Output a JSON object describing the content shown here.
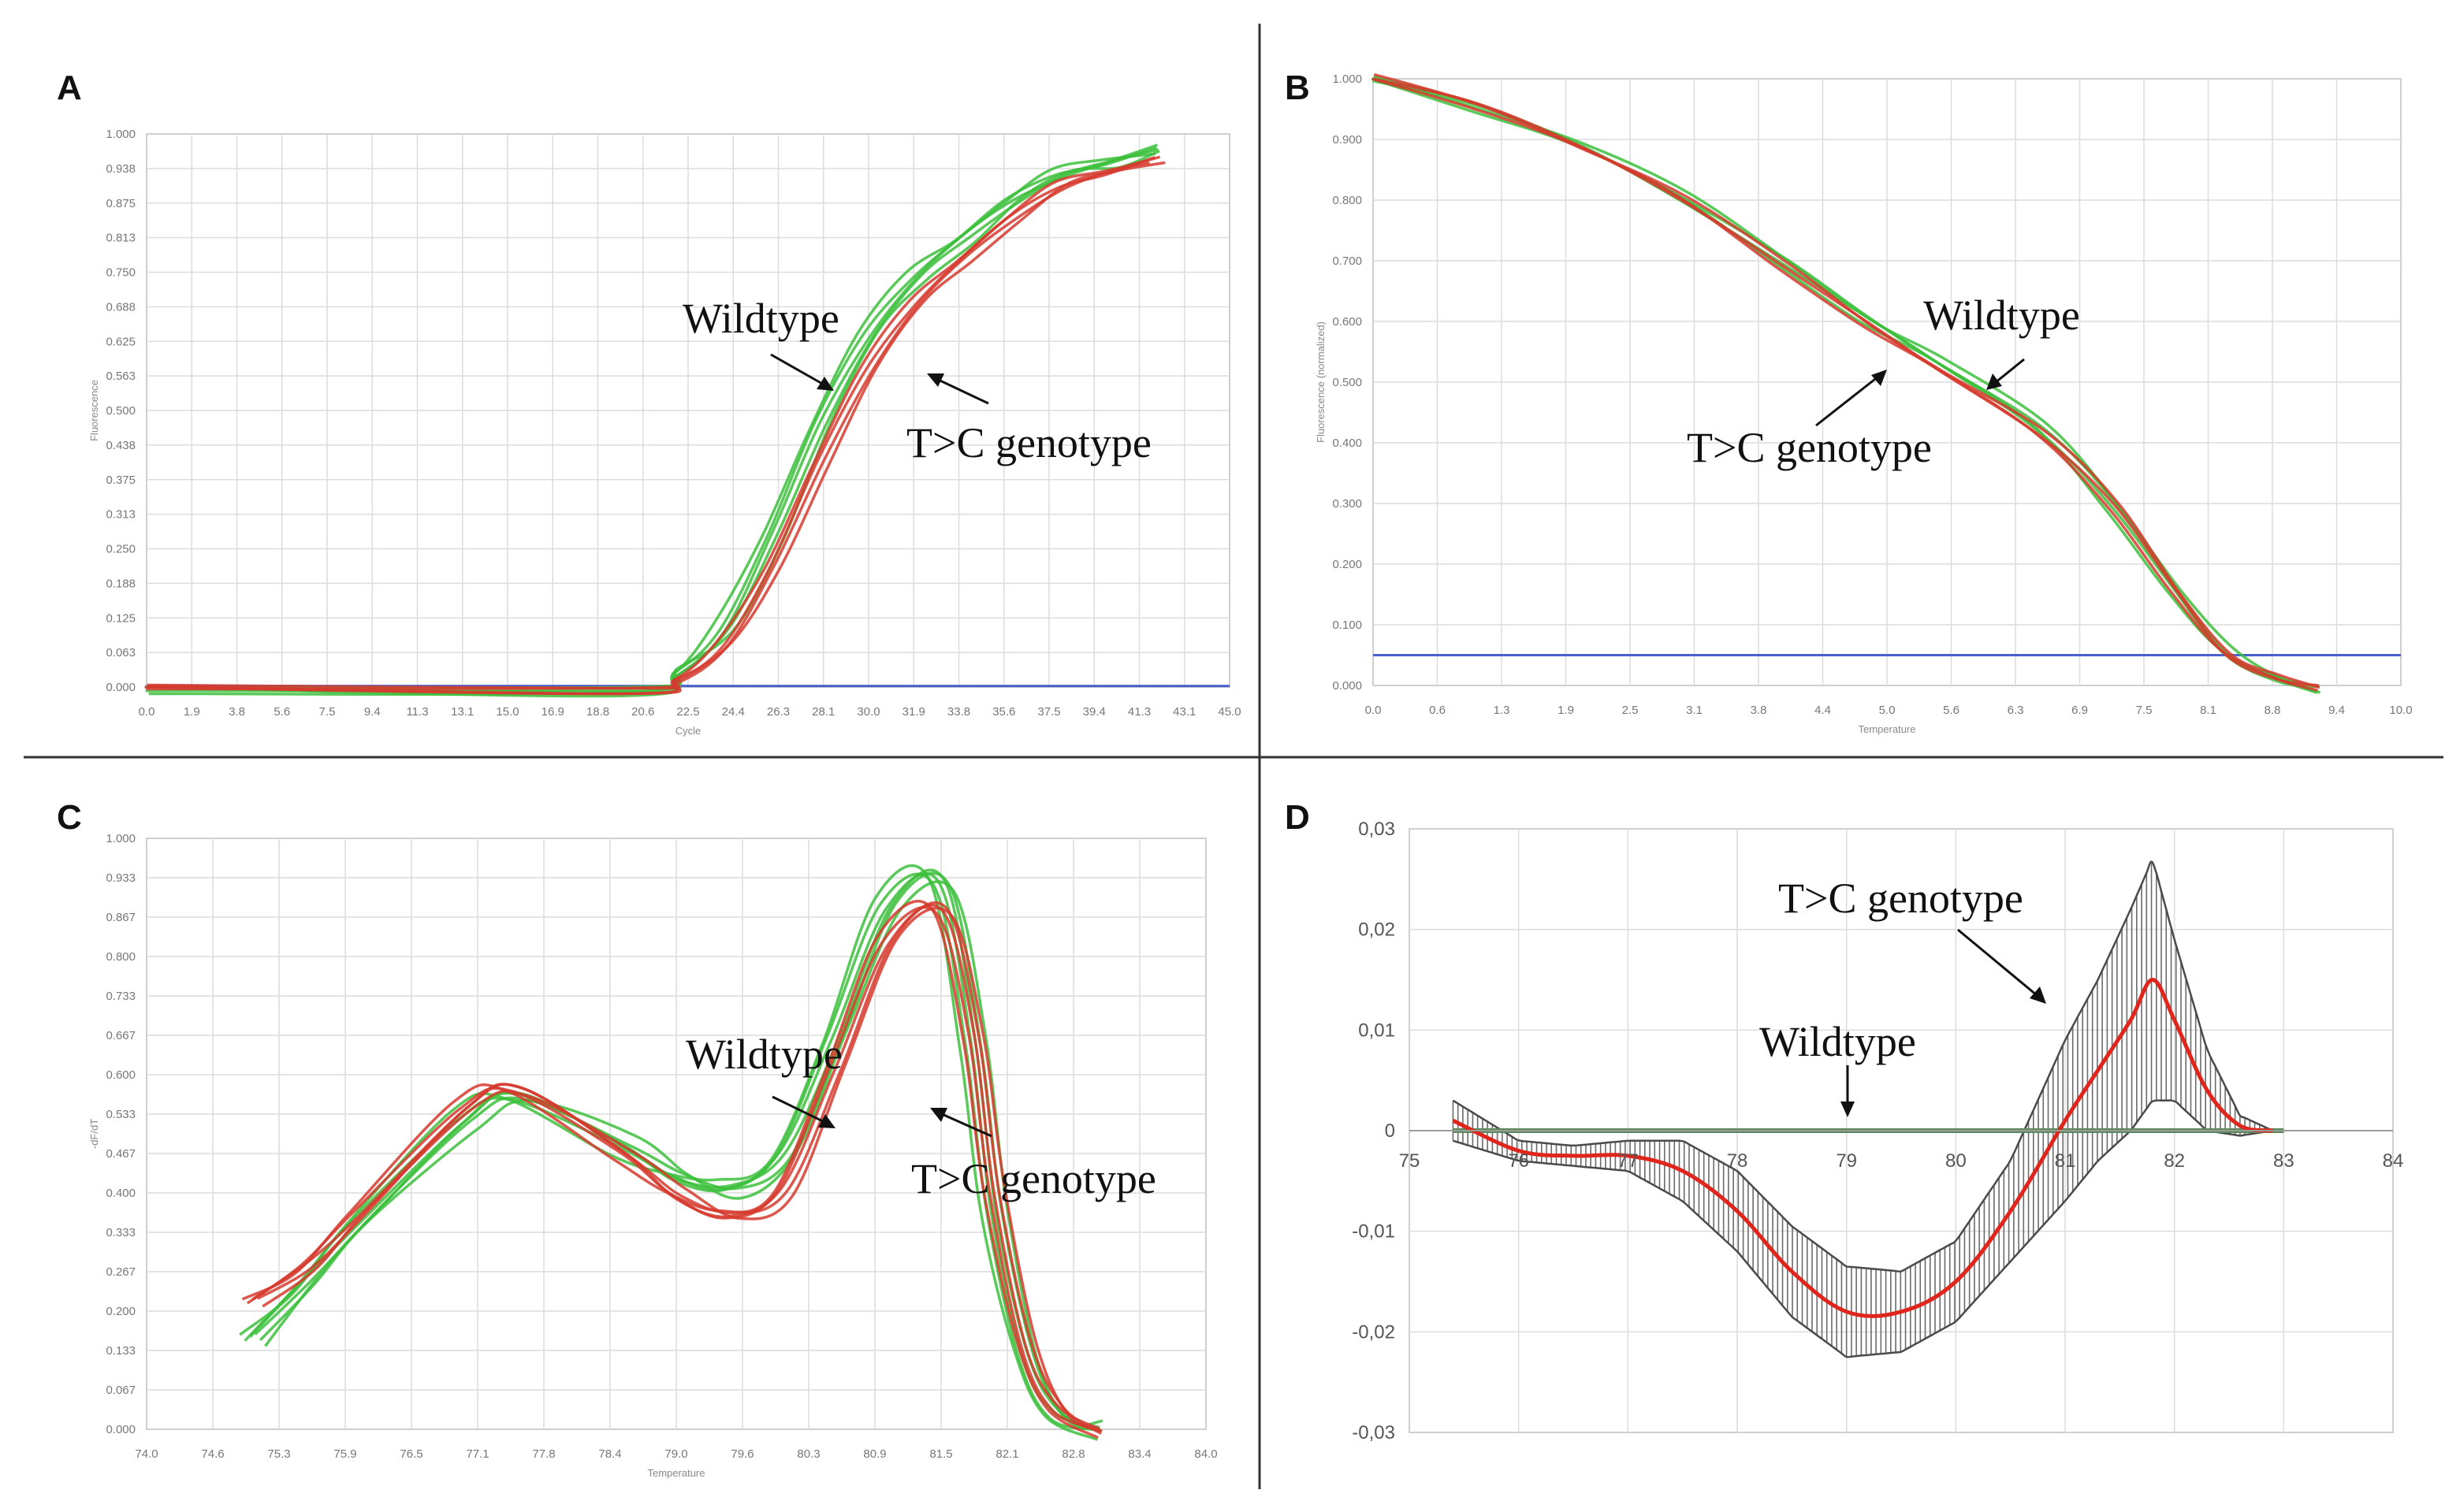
{
  "figure": {
    "colors": {
      "wildtype": "#3cbf3c",
      "mutant": "#d63a2e",
      "threshold": "#4a5fd0",
      "errorbar": "#6b6b6b",
      "meanline": "#e0261c"
    },
    "panels": [
      {
        "letter": "A",
        "annotations": [
          "Wildtype",
          "T>C genotype"
        ]
      },
      {
        "letter": "B",
        "annotations": [
          "Wildtype",
          "T>C genotype"
        ]
      },
      {
        "letter": "C",
        "annotations": [
          "Wildtype",
          "T>C genotype"
        ]
      },
      {
        "letter": "D",
        "annotations": [
          "T>C genotype",
          "Wildtype"
        ]
      }
    ]
  },
  "chart_data": [
    {
      "panel": "A",
      "type": "line",
      "title": "",
      "xlabel": "Cycle",
      "ylabel": "Fluorescence",
      "xlim": [
        0,
        45
      ],
      "ylim": [
        0,
        1
      ],
      "grid": true,
      "series": [
        {
          "name": "Wildtype",
          "color": "#3cbf3c",
          "count": 5,
          "x": [
            0,
            20,
            22,
            24,
            26,
            28,
            30,
            32,
            34,
            36,
            38,
            40,
            42
          ],
          "values": [
            0.0,
            0.0,
            0.02,
            0.1,
            0.28,
            0.48,
            0.63,
            0.74,
            0.82,
            0.88,
            0.92,
            0.95,
            0.98
          ]
        },
        {
          "name": "T>C genotype",
          "color": "#d63a2e",
          "count": 4,
          "x": [
            0,
            20,
            22,
            24,
            26,
            28,
            30,
            32,
            34,
            36,
            38,
            40,
            42
          ],
          "values": [
            0.0,
            0.0,
            0.01,
            0.07,
            0.22,
            0.41,
            0.57,
            0.69,
            0.78,
            0.85,
            0.9,
            0.93,
            0.96
          ]
        },
        {
          "name": "threshold",
          "color": "#4a5fd0",
          "x": [
            0,
            45
          ],
          "values": [
            0.002,
            0.002
          ]
        }
      ]
    },
    {
      "panel": "B",
      "type": "line",
      "title": "",
      "xlabel": "Temperature",
      "ylabel": "Fluorescence (normalized)",
      "xlim": [
        0,
        10
      ],
      "ylim": [
        0,
        1
      ],
      "grid": true,
      "series": [
        {
          "name": "Wildtype",
          "color": "#3cbf3c",
          "count": 4,
          "x": [
            0,
            1,
            2,
            3,
            4,
            4.8,
            5.5,
            6.5,
            7.2,
            7.8,
            8.3,
            8.8,
            9.2
          ],
          "values": [
            1.0,
            0.96,
            0.89,
            0.8,
            0.7,
            0.61,
            0.53,
            0.42,
            0.3,
            0.16,
            0.05,
            0.01,
            0.0
          ]
        },
        {
          "name": "T>C genotype",
          "color": "#d63a2e",
          "count": 3,
          "x": [
            0,
            1,
            2,
            3,
            4,
            4.8,
            5.5,
            6.5,
            7.2,
            7.8,
            8.3,
            8.8,
            9.2
          ],
          "values": [
            1.0,
            0.96,
            0.89,
            0.8,
            0.69,
            0.6,
            0.52,
            0.41,
            0.3,
            0.16,
            0.05,
            0.01,
            0.0
          ]
        },
        {
          "name": "threshold",
          "color": "#4a5fd0",
          "x": [
            0,
            10
          ],
          "values": [
            0.05,
            0.05
          ]
        }
      ]
    },
    {
      "panel": "C",
      "type": "line",
      "title": "",
      "xlabel": "Temperature",
      "ylabel": "-dF/dT",
      "xlim": [
        74,
        84
      ],
      "ylim": [
        0,
        1
      ],
      "grid": true,
      "series": [
        {
          "name": "Wildtype",
          "color": "#3cbf3c",
          "count": 6,
          "x": [
            75,
            75.5,
            76,
            77,
            77.5,
            78.5,
            79,
            79.5,
            80,
            80.5,
            81,
            81.5,
            81.8,
            82,
            82.3,
            82.6,
            83
          ],
          "values": [
            0.16,
            0.25,
            0.34,
            0.52,
            0.57,
            0.48,
            0.42,
            0.41,
            0.47,
            0.66,
            0.88,
            0.93,
            0.66,
            0.36,
            0.12,
            0.03,
            0.0
          ]
        },
        {
          "name": "T>C genotype",
          "color": "#d63a2e",
          "count": 5,
          "x": [
            75,
            75.5,
            76,
            77,
            77.5,
            78.5,
            79,
            79.5,
            80,
            80.5,
            81,
            81.5,
            81.8,
            82,
            82.3,
            82.6,
            83
          ],
          "values": [
            0.22,
            0.28,
            0.36,
            0.54,
            0.58,
            0.47,
            0.39,
            0.36,
            0.41,
            0.61,
            0.82,
            0.88,
            0.68,
            0.4,
            0.14,
            0.04,
            0.0
          ]
        }
      ]
    },
    {
      "panel": "D",
      "type": "line",
      "title": "",
      "xlabel": "",
      "ylabel": "",
      "xlim": [
        75,
        84
      ],
      "ylim": [
        -0.03,
        0.03
      ],
      "xticks": [
        "75",
        "76",
        "77",
        "78",
        "79",
        "80",
        "81",
        "82",
        "83",
        "84"
      ],
      "yticks": [
        "0,03",
        "0,02",
        "0,01",
        "0",
        "-0,01",
        "-0,02",
        "-0,03"
      ],
      "grid": true,
      "series": [
        {
          "name": "T>C genotype (mean)",
          "color": "#e0261c",
          "x": [
            75.4,
            76,
            76.5,
            77,
            77.5,
            78,
            78.5,
            79,
            79.5,
            80,
            80.5,
            81,
            81.3,
            81.6,
            81.8,
            82,
            82.3,
            82.6,
            82.9
          ],
          "values": [
            0.001,
            -0.002,
            -0.0025,
            -0.0025,
            -0.004,
            -0.008,
            -0.014,
            -0.018,
            -0.018,
            -0.015,
            -0.008,
            0.001,
            0.006,
            0.011,
            0.015,
            0.011,
            0.004,
            0.0005,
            0.0
          ]
        },
        {
          "name": "T>C genotype (error)",
          "color": "#6b6b6b",
          "x": [
            75.4,
            76,
            76.5,
            77,
            77.5,
            78,
            78.5,
            79,
            79.5,
            80,
            80.5,
            81,
            81.3,
            81.6,
            81.8,
            82,
            82.3,
            82.6,
            82.9
          ],
          "values": [
            0.002,
            0.001,
            0.001,
            0.0015,
            0.003,
            0.004,
            0.0045,
            0.0045,
            0.004,
            0.004,
            0.005,
            0.008,
            0.009,
            0.011,
            0.012,
            0.008,
            0.004,
            0.001,
            0.0
          ]
        },
        {
          "name": "Wildtype",
          "color": "#5a8a5a",
          "x": [
            75.4,
            83
          ],
          "values": [
            0.0,
            0.0
          ]
        }
      ]
    }
  ]
}
